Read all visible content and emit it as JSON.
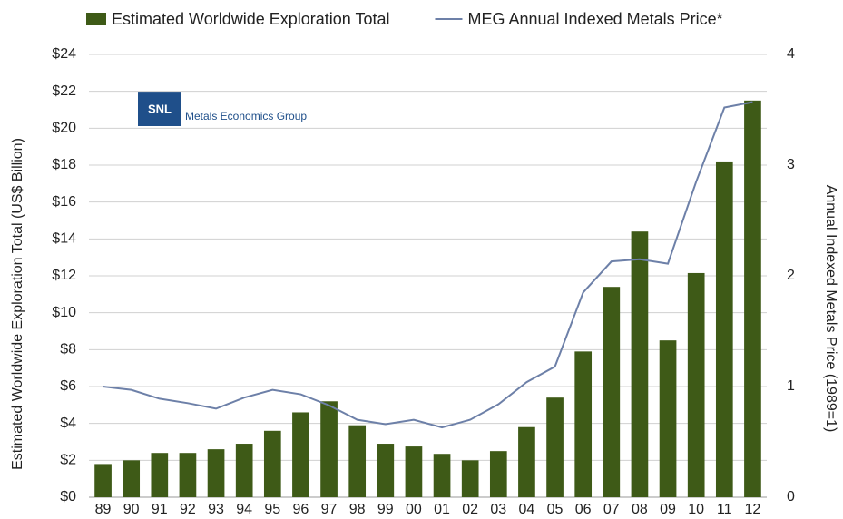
{
  "chart_data": {
    "type": "bar_line",
    "legend": {
      "position": "top"
    },
    "logo": {
      "badge": "SNL",
      "text": "Metals Economics Group"
    },
    "ylabel": "Estimated Worldwide Exploration Total (US$ Billion)",
    "y2label": "Annual Indexed Metals Price  (1989=1)",
    "categories": [
      "89",
      "90",
      "91",
      "92",
      "93",
      "94",
      "95",
      "96",
      "97",
      "98",
      "99",
      "00",
      "01",
      "02",
      "03",
      "04",
      "05",
      "06",
      "07",
      "08",
      "09",
      "10",
      "11",
      "12"
    ],
    "series": [
      {
        "name": "Estimated Worldwide Exploration Total",
        "type": "bar",
        "color": "#3e5a17",
        "values": [
          1.8,
          2.0,
          2.4,
          2.4,
          2.6,
          2.9,
          3.6,
          4.6,
          5.2,
          3.9,
          2.9,
          2.75,
          2.35,
          2.0,
          2.5,
          3.8,
          5.4,
          7.9,
          11.4,
          14.4,
          8.5,
          12.15,
          18.2,
          21.5
        ]
      },
      {
        "name": "MEG Annual Indexed Metals Price*",
        "type": "line",
        "axis": "y2",
        "color": "#6d80a8",
        "values": [
          1.0,
          0.97,
          0.89,
          0.85,
          0.8,
          0.9,
          0.97,
          0.93,
          0.83,
          0.7,
          0.66,
          0.7,
          0.63,
          0.7,
          0.84,
          1.04,
          1.18,
          1.85,
          2.13,
          2.15,
          2.11,
          2.85,
          3.52,
          3.57
        ]
      }
    ],
    "ylim": [
      0,
      24
    ],
    "yticks": [
      {
        "value": 0,
        "label": "$0"
      },
      {
        "value": 2,
        "label": "$2"
      },
      {
        "value": 4,
        "label": "$4"
      },
      {
        "value": 6,
        "label": "$6"
      },
      {
        "value": 8,
        "label": "$8"
      },
      {
        "value": 10,
        "label": "$10"
      },
      {
        "value": 12,
        "label": "$12"
      },
      {
        "value": 14,
        "label": "$14"
      },
      {
        "value": 16,
        "label": "$16"
      },
      {
        "value": 18,
        "label": "$18"
      },
      {
        "value": 20,
        "label": "$20"
      },
      {
        "value": 22,
        "label": "$22"
      },
      {
        "value": 24,
        "label": "$24"
      }
    ],
    "y2lim": [
      0,
      4
    ],
    "y2ticks": [
      0,
      1,
      2,
      3,
      4
    ],
    "grid": true
  }
}
